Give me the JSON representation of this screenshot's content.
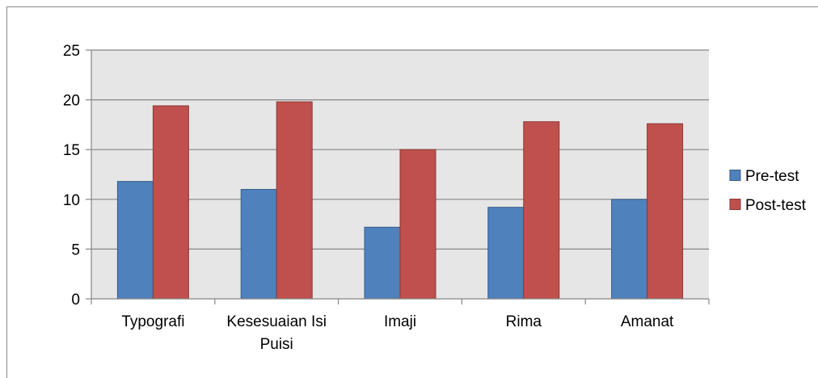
{
  "chart_data": {
    "type": "bar",
    "categories": [
      "Typografi",
      "Kesesuaian Isi Puisi",
      "Imaji",
      "Rima",
      "Amanat"
    ],
    "category_label_lines": [
      [
        "Typografi"
      ],
      [
        "Kesesuaian Isi",
        "Puisi"
      ],
      [
        "Imaji"
      ],
      [
        "Rima"
      ],
      [
        "Amanat"
      ]
    ],
    "series": [
      {
        "name": "Pre-test",
        "values": [
          11.8,
          11.0,
          7.2,
          9.2,
          10.0
        ],
        "color": "#4F81BD",
        "stroke": "#385D8A"
      },
      {
        "name": "Post-test",
        "values": [
          19.4,
          19.8,
          15.0,
          17.8,
          17.6
        ],
        "color": "#C0504D",
        "stroke": "#8C3836"
      }
    ],
    "ylim": [
      0,
      25
    ],
    "yticks": [
      0,
      5,
      10,
      15,
      20,
      25
    ],
    "grid": true,
    "plot_background": "#E6E6E6",
    "grid_color": "#868686",
    "legend_position": "right",
    "title": "",
    "xlabel": "",
    "ylabel": ""
  }
}
